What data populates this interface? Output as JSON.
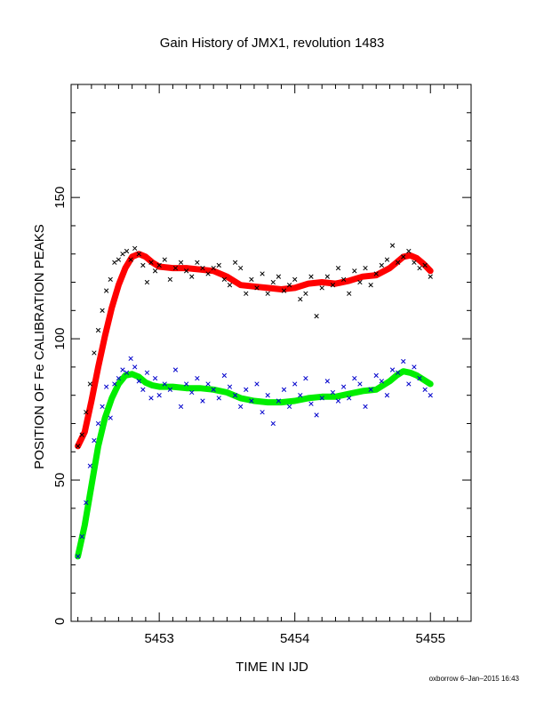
{
  "chart_data": {
    "type": "scatter",
    "title": "Gain History of JMX1, revolution 1483",
    "xlabel": "TIME IN IJD",
    "ylabel": "POSITION OF Fe CALIBRATION PEAKS",
    "xlim": [
      5452.35,
      5455.3
    ],
    "ylim": [
      0,
      190
    ],
    "x_ticks": [
      5453,
      5454,
      5455
    ],
    "y_ticks": [
      0,
      50,
      100,
      150
    ],
    "grid": false,
    "footer": "oxborrow  6–Jan–2015 16:43",
    "series": [
      {
        "kind": "points",
        "color": "#000000",
        "x": [
          5452.4,
          5452.43,
          5452.46,
          5452.49,
          5452.52,
          5452.55,
          5452.58,
          5452.61,
          5452.64,
          5452.67,
          5452.7,
          5452.73,
          5452.76,
          5452.79,
          5452.82,
          5452.85,
          5452.88,
          5452.91,
          5452.94,
          5452.97,
          5453.0,
          5453.04,
          5453.08,
          5453.12,
          5453.16,
          5453.2,
          5453.24,
          5453.28,
          5453.32,
          5453.36,
          5453.4,
          5453.44,
          5453.48,
          5453.52,
          5453.56,
          5453.6,
          5453.64,
          5453.68,
          5453.72,
          5453.76,
          5453.8,
          5453.84,
          5453.88,
          5453.92,
          5453.96,
          5454.0,
          5454.04,
          5454.08,
          5454.12,
          5454.16,
          5454.2,
          5454.24,
          5454.28,
          5454.32,
          5454.36,
          5454.4,
          5454.44,
          5454.48,
          5454.52,
          5454.56,
          5454.6,
          5454.64,
          5454.68,
          5454.72,
          5454.76,
          5454.8,
          5454.84,
          5454.88,
          5454.92,
          5454.96,
          5455.0
        ],
        "y": [
          62,
          66,
          74,
          84,
          95,
          103,
          110,
          117,
          121,
          127,
          128,
          130,
          131,
          128,
          132,
          130,
          126,
          120,
          127,
          124,
          126,
          128,
          121,
          125,
          127,
          124,
          122,
          127,
          125,
          123,
          125,
          126,
          121,
          119,
          127,
          125,
          116,
          121,
          118,
          123,
          116,
          120,
          122,
          117,
          119,
          121,
          114,
          116,
          122,
          108,
          118,
          122,
          119,
          125,
          121,
          116,
          124,
          120,
          125,
          119,
          123,
          126,
          128,
          133,
          127,
          129,
          131,
          127,
          125,
          126,
          122
        ]
      },
      {
        "kind": "points",
        "color": "#0000cc",
        "x": [
          5452.4,
          5452.43,
          5452.46,
          5452.49,
          5452.52,
          5452.55,
          5452.58,
          5452.61,
          5452.64,
          5452.67,
          5452.7,
          5452.73,
          5452.76,
          5452.79,
          5452.82,
          5452.85,
          5452.88,
          5452.91,
          5452.94,
          5452.97,
          5453.0,
          5453.04,
          5453.08,
          5453.12,
          5453.16,
          5453.2,
          5453.24,
          5453.28,
          5453.32,
          5453.36,
          5453.4,
          5453.44,
          5453.48,
          5453.52,
          5453.56,
          5453.6,
          5453.64,
          5453.68,
          5453.72,
          5453.76,
          5453.8,
          5453.84,
          5453.88,
          5453.92,
          5453.96,
          5454.0,
          5454.04,
          5454.08,
          5454.12,
          5454.16,
          5454.2,
          5454.24,
          5454.28,
          5454.32,
          5454.36,
          5454.4,
          5454.44,
          5454.48,
          5454.52,
          5454.56,
          5454.6,
          5454.64,
          5454.68,
          5454.72,
          5454.76,
          5454.8,
          5454.84,
          5454.88,
          5454.92,
          5454.96,
          5455.0
        ],
        "y": [
          23,
          30,
          42,
          55,
          64,
          70,
          76,
          83,
          72,
          84,
          86,
          89,
          88,
          93,
          90,
          85,
          82,
          88,
          79,
          86,
          80,
          84,
          82,
          89,
          76,
          84,
          81,
          86,
          78,
          84,
          82,
          79,
          87,
          83,
          80,
          76,
          82,
          78,
          84,
          74,
          80,
          70,
          78,
          82,
          76,
          84,
          80,
          86,
          77,
          73,
          79,
          85,
          81,
          78,
          83,
          79,
          86,
          84,
          76,
          82,
          87,
          85,
          80,
          89,
          88,
          92,
          84,
          90,
          86,
          82,
          80
        ]
      },
      {
        "kind": "line",
        "color": "#ff0000",
        "x": [
          5452.4,
          5452.45,
          5452.5,
          5452.55,
          5452.6,
          5452.65,
          5452.7,
          5452.75,
          5452.8,
          5452.85,
          5452.9,
          5452.95,
          5453.0,
          5453.1,
          5453.2,
          5453.3,
          5453.4,
          5453.5,
          5453.6,
          5453.7,
          5453.8,
          5453.9,
          5454.0,
          5454.1,
          5454.2,
          5454.3,
          5454.4,
          5454.5,
          5454.6,
          5454.7,
          5454.75,
          5454.8,
          5454.85,
          5454.9,
          5454.95,
          5455.0
        ],
        "y": [
          62,
          67,
          78,
          90,
          101,
          111,
          119,
          125,
          129,
          130,
          129,
          127,
          125.5,
          125,
          125,
          124.5,
          124,
          122,
          119,
          118.5,
          118,
          117.5,
          118,
          119.5,
          120,
          119.5,
          120.5,
          122,
          122.5,
          125,
          127,
          129,
          129.5,
          128.5,
          126.5,
          124
        ]
      },
      {
        "kind": "line",
        "color": "#00ee00",
        "x": [
          5452.4,
          5452.45,
          5452.5,
          5452.55,
          5452.6,
          5452.65,
          5452.7,
          5452.75,
          5452.8,
          5452.85,
          5452.9,
          5452.95,
          5453.0,
          5453.1,
          5453.2,
          5453.3,
          5453.4,
          5453.5,
          5453.6,
          5453.7,
          5453.8,
          5453.9,
          5454.0,
          5454.1,
          5454.2,
          5454.3,
          5454.4,
          5454.5,
          5454.6,
          5454.7,
          5454.75,
          5454.8,
          5454.85,
          5454.9,
          5454.95,
          5455.0
        ],
        "y": [
          23,
          34,
          48,
          62,
          72,
          79,
          84,
          87,
          87.5,
          86.5,
          84.5,
          83.5,
          83,
          83,
          82.5,
          82.5,
          82,
          81,
          79,
          78,
          77.5,
          77.5,
          78,
          79,
          79.5,
          79.5,
          80.5,
          81.5,
          82,
          85,
          87,
          88.5,
          88,
          87,
          85.5,
          84
        ]
      }
    ]
  }
}
